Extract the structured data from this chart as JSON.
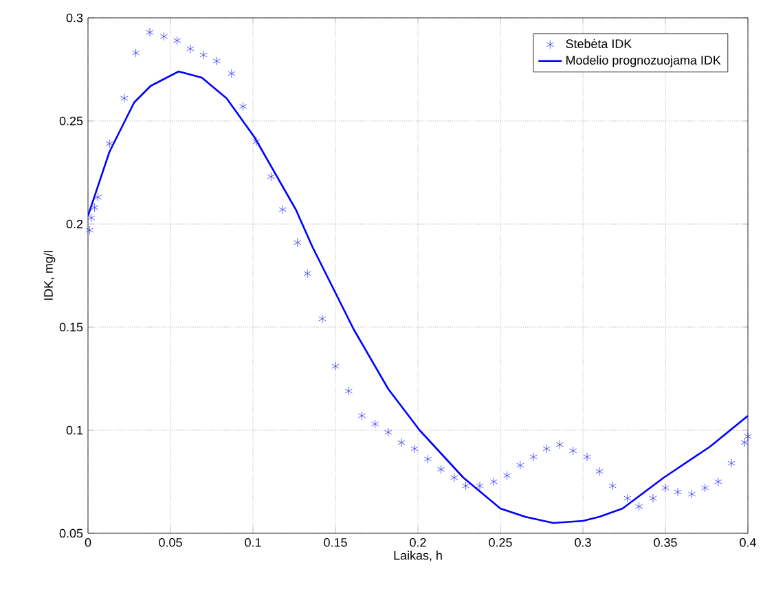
{
  "chart_data": {
    "type": "line",
    "xlabel": "Laikas, h",
    "ylabel": "IDK, mg/l",
    "xlim": [
      0,
      0.4
    ],
    "ylim": [
      0.05,
      0.3
    ],
    "xticks": [
      0,
      0.05,
      0.1,
      0.15,
      0.2,
      0.25,
      0.3,
      0.35,
      0.4
    ],
    "yticks": [
      0.05,
      0.1,
      0.15,
      0.2,
      0.25,
      0.3
    ],
    "grid": true,
    "legend": "top right",
    "series": [
      {
        "name": "Stebėta IDK",
        "type": "scatter",
        "marker": "cross",
        "color": "#3333ff",
        "x": [
          0.001,
          0.002,
          0.004,
          0.006,
          0.013,
          0.022,
          0.029,
          0.0375,
          0.046,
          0.054,
          0.062,
          0.07,
          0.078,
          0.087,
          0.094,
          0.102,
          0.111,
          0.118,
          0.127,
          0.133,
          0.142,
          0.15,
          0.158,
          0.166,
          0.174,
          0.182,
          0.19,
          0.198,
          0.206,
          0.214,
          0.222,
          0.229,
          0.2375,
          0.246,
          0.254,
          0.262,
          0.27,
          0.278,
          0.286,
          0.294,
          0.3025,
          0.31,
          0.318,
          0.327,
          0.334,
          0.3425,
          0.35,
          0.3575,
          0.366,
          0.374,
          0.382,
          0.39,
          0.398,
          0.4
        ],
        "values": [
          0.197,
          0.203,
          0.208,
          0.213,
          0.239,
          0.261,
          0.283,
          0.293,
          0.291,
          0.289,
          0.285,
          0.282,
          0.279,
          0.273,
          0.257,
          0.24,
          0.223,
          0.207,
          0.191,
          0.176,
          0.154,
          0.131,
          0.119,
          0.107,
          0.103,
          0.099,
          0.094,
          0.091,
          0.086,
          0.081,
          0.077,
          0.073,
          0.073,
          0.075,
          0.078,
          0.083,
          0.087,
          0.091,
          0.093,
          0.09,
          0.087,
          0.08,
          0.073,
          0.067,
          0.063,
          0.067,
          0.072,
          0.07,
          0.069,
          0.072,
          0.075,
          0.084,
          0.094,
          0.097
        ]
      },
      {
        "name": "Modelio prognozuojama IDK",
        "marker": "none",
        "color": "#0000ff",
        "x": [
          0,
          0.013,
          0.028,
          0.038,
          0.055,
          0.069,
          0.084,
          0.101,
          0.126,
          0.136,
          0.161,
          0.182,
          0.201,
          0.2275,
          0.25,
          0.265,
          0.282,
          0.3,
          0.31,
          0.324,
          0.349,
          0.377,
          0.4
        ],
        "values": [
          0.204,
          0.235,
          0.259,
          0.267,
          0.274,
          0.271,
          0.261,
          0.242,
          0.207,
          0.189,
          0.149,
          0.12,
          0.1,
          0.077,
          0.062,
          0.058,
          0.055,
          0.056,
          0.058,
          0.062,
          0.077,
          0.092,
          0.107
        ]
      }
    ]
  }
}
